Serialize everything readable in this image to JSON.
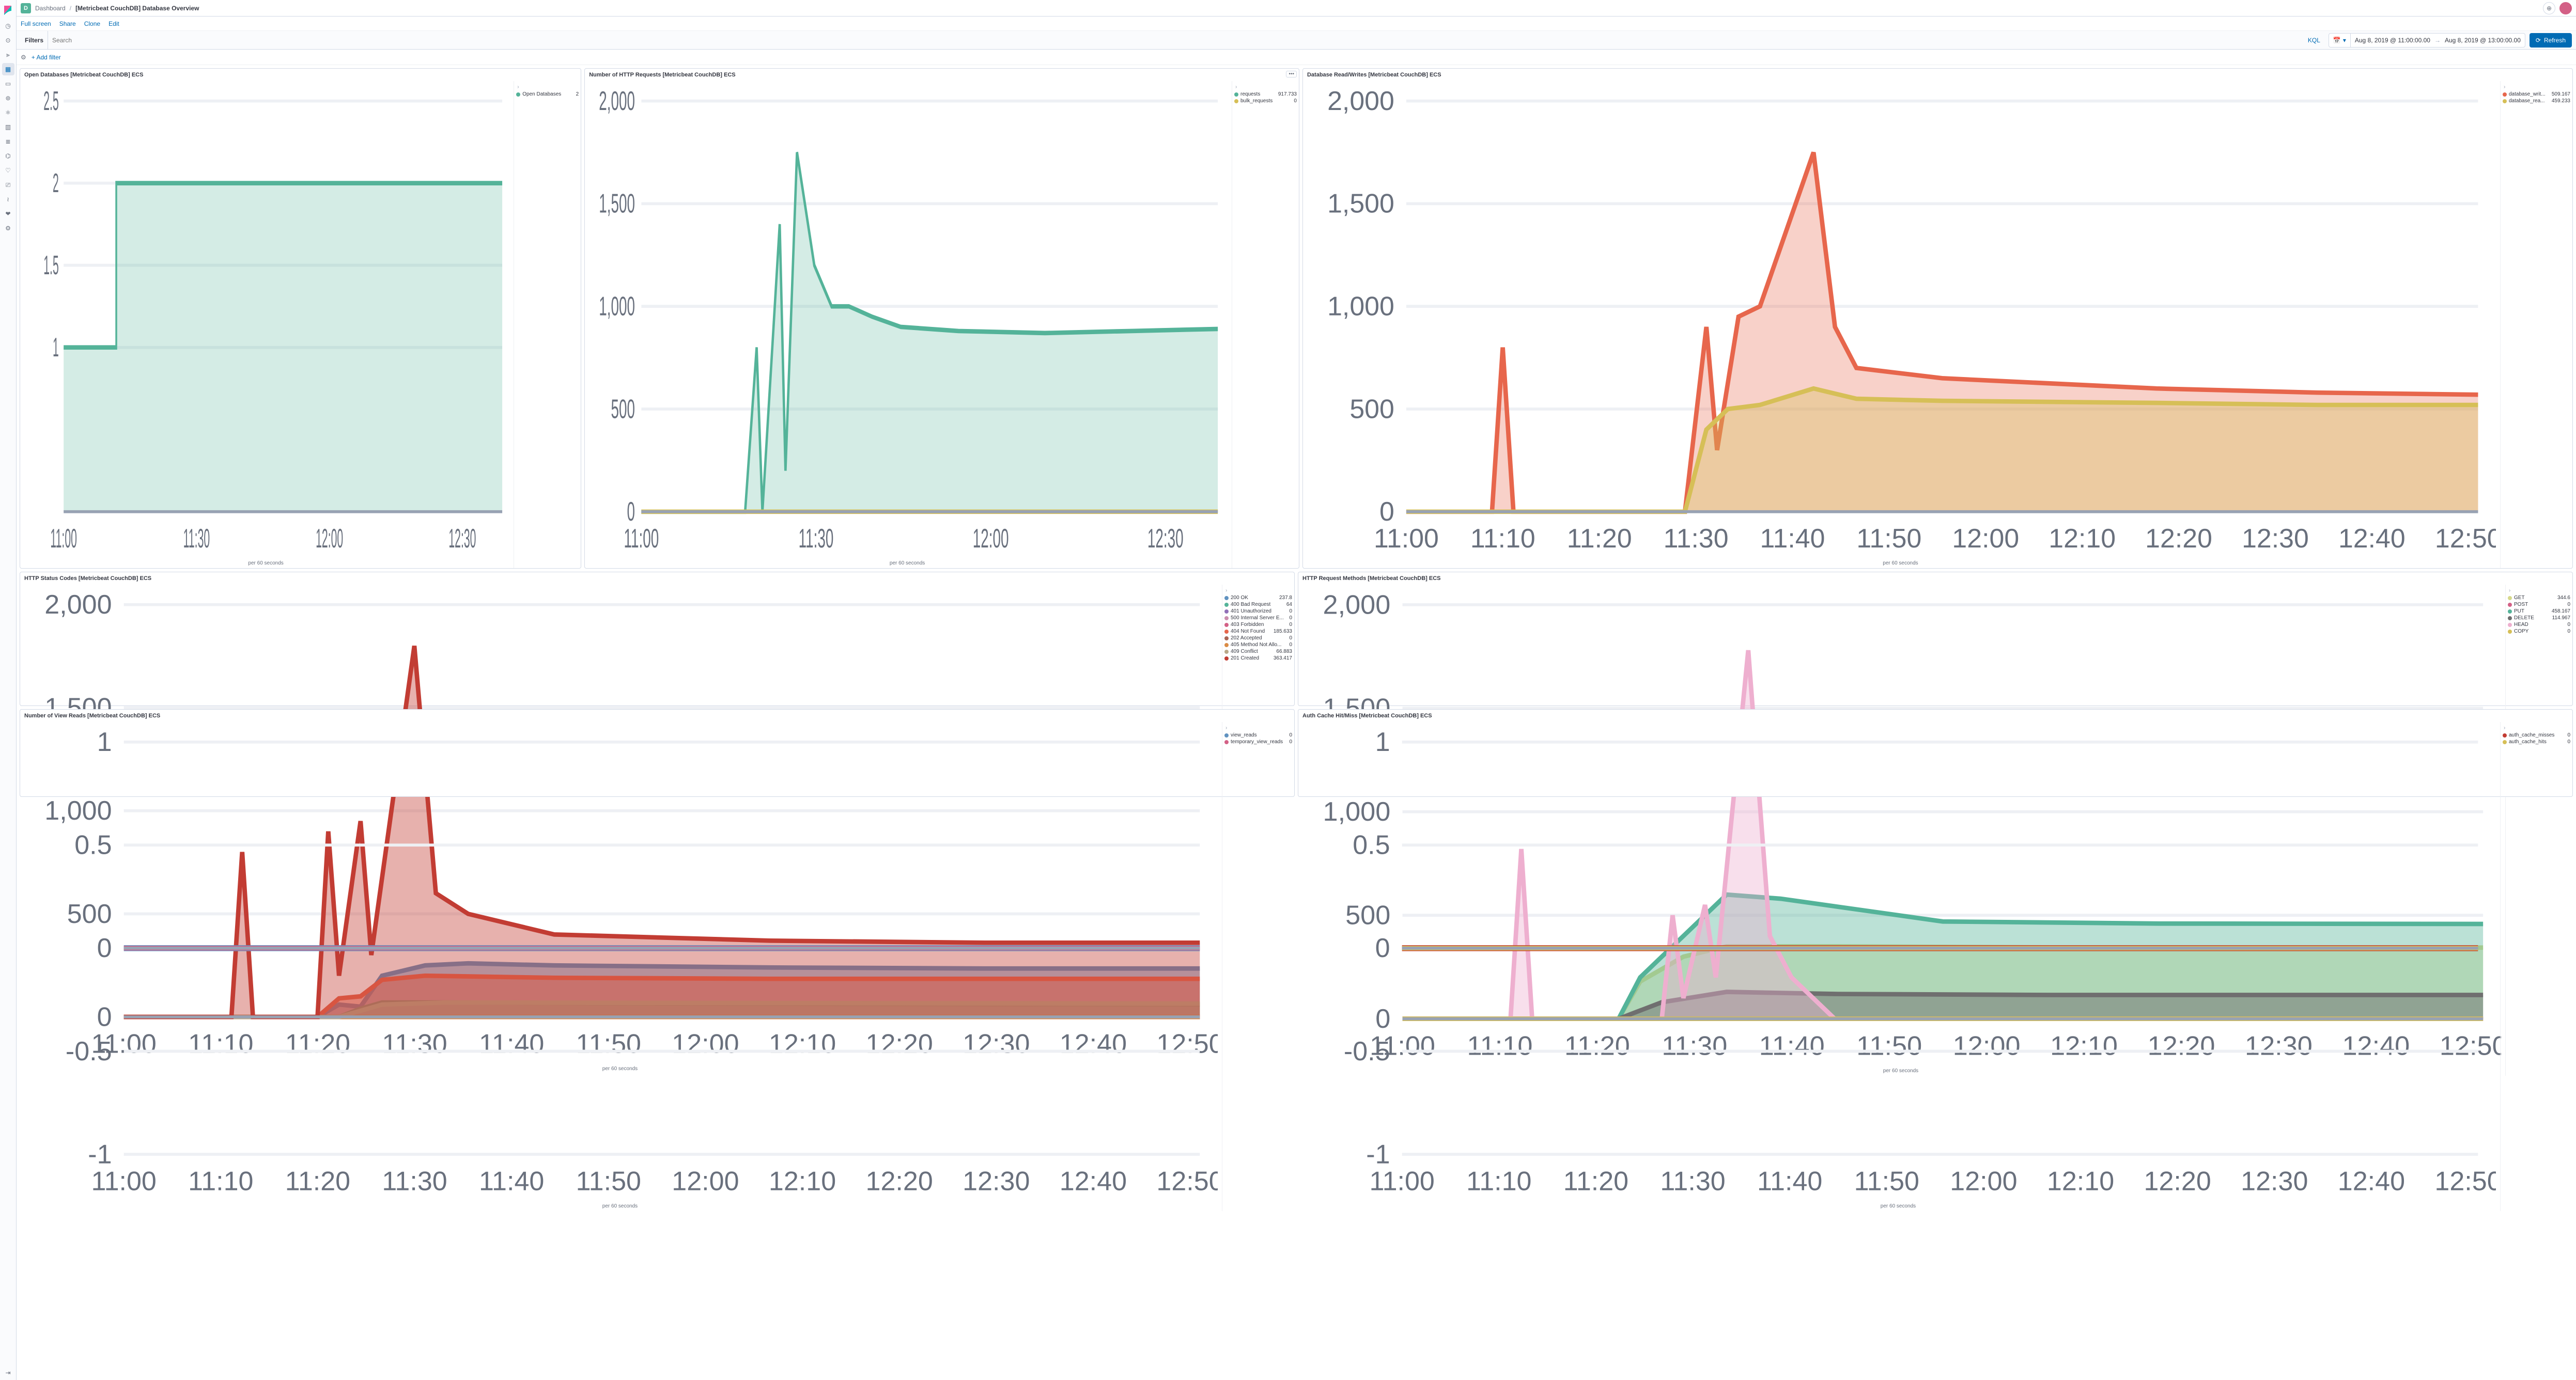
{
  "header": {
    "app_badge": "D",
    "crumb1": "Dashboard",
    "title": "[Metricbeat CouchDB] Database Overview"
  },
  "toolbar": {
    "fullscreen": "Full screen",
    "share": "Share",
    "clone": "Clone",
    "edit": "Edit"
  },
  "filterbar": {
    "filters_label": "Filters",
    "search_placeholder": "Search",
    "kql": "KQL",
    "time_from": "Aug 8, 2019 @ 11:00:00.00",
    "time_to": "Aug 8, 2019 @ 13:00:00.00",
    "refresh": "Refresh"
  },
  "addfilter": {
    "label": "+ Add filter"
  },
  "xcaption": "per 60 seconds",
  "xticks_short": [
    "11:00",
    "11:30",
    "12:00",
    "12:30"
  ],
  "xticks_long": [
    "11:00",
    "11:10",
    "11:20",
    "11:30",
    "11:40",
    "11:50",
    "12:00",
    "12:10",
    "12:20",
    "12:30",
    "12:40",
    "12:50"
  ],
  "panels": {
    "open_db": {
      "title": "Open Databases [Metricbeat CouchDB] ECS",
      "ylim": [
        0,
        2.5
      ],
      "yticks": [
        1,
        1.5,
        2,
        2.5
      ],
      "series": [
        {
          "label": "Open Databases",
          "value": "2",
          "color": "#54b399",
          "points": [
            [
              0,
              1
            ],
            [
              0.12,
              1
            ],
            [
              0.12,
              2
            ],
            [
              1,
              2
            ]
          ],
          "fill_opacity": 0.25
        }
      ]
    },
    "http_req": {
      "title": "Number of HTTP Requests [Metricbeat CouchDB] ECS",
      "ylim": [
        0,
        2000
      ],
      "yticks": [
        0,
        500,
        1000,
        1500,
        2000
      ],
      "show_menu": true,
      "series": [
        {
          "label": "requests",
          "value": "917.733",
          "color": "#54b399",
          "points": [
            [
              0,
              0
            ],
            [
              0.18,
              0
            ],
            [
              0.2,
              800
            ],
            [
              0.21,
              0
            ],
            [
              0.24,
              1400
            ],
            [
              0.25,
              200
            ],
            [
              0.27,
              1750
            ],
            [
              0.3,
              1200
            ],
            [
              0.33,
              1000
            ],
            [
              0.36,
              1000
            ],
            [
              0.4,
              950
            ],
            [
              0.45,
              900
            ],
            [
              0.55,
              880
            ],
            [
              0.7,
              870
            ],
            [
              0.85,
              880
            ],
            [
              1,
              890
            ]
          ],
          "fill_opacity": 0.25
        },
        {
          "label": "bulk_requests",
          "value": "0",
          "color": "#d6bf57",
          "points": [
            [
              0,
              0
            ],
            [
              1,
              0
            ]
          ],
          "fill_opacity": 0.25
        }
      ]
    },
    "db_rw": {
      "title": "Database Read/Writes [Metricbeat CouchDB] ECS",
      "ylim": [
        0,
        2000
      ],
      "yticks": [
        0,
        500,
        1000,
        1500,
        2000
      ],
      "series": [
        {
          "label": "database_writ...",
          "value": "509.167",
          "color": "#e7664c",
          "points": [
            [
              0,
              0
            ],
            [
              0.08,
              0
            ],
            [
              0.09,
              800
            ],
            [
              0.1,
              0
            ],
            [
              0.26,
              0
            ],
            [
              0.28,
              900
            ],
            [
              0.29,
              300
            ],
            [
              0.31,
              950
            ],
            [
              0.33,
              1000
            ],
            [
              0.38,
              1750
            ],
            [
              0.4,
              900
            ],
            [
              0.42,
              700
            ],
            [
              0.5,
              650
            ],
            [
              0.7,
              600
            ],
            [
              0.85,
              580
            ],
            [
              1,
              570
            ]
          ],
          "fill_opacity": 0.3
        },
        {
          "label": "database_rea...",
          "value": "459.233",
          "color": "#d6bf57",
          "points": [
            [
              0,
              0
            ],
            [
              0.26,
              0
            ],
            [
              0.28,
              400
            ],
            [
              0.3,
              500
            ],
            [
              0.33,
              520
            ],
            [
              0.38,
              600
            ],
            [
              0.42,
              550
            ],
            [
              0.5,
              540
            ],
            [
              0.7,
              530
            ],
            [
              0.85,
              520
            ],
            [
              1,
              520
            ]
          ],
          "fill_opacity": 0.35
        }
      ]
    },
    "status": {
      "title": "HTTP Status Codes [Metricbeat CouchDB] ECS",
      "ylim": [
        0,
        2000
      ],
      "yticks": [
        0,
        500,
        1000,
        1500,
        2000
      ],
      "stacked": true,
      "series": [
        {
          "label": "200 OK",
          "value": "237.8",
          "color": "#6092c0",
          "points": [
            [
              0,
              0
            ],
            [
              0.18,
              0
            ],
            [
              0.2,
              60
            ],
            [
              0.22,
              50
            ],
            [
              0.24,
              200
            ],
            [
              0.28,
              250
            ],
            [
              0.32,
              260
            ],
            [
              0.4,
              250
            ],
            [
              0.6,
              240
            ],
            [
              0.8,
              235
            ],
            [
              1,
              235
            ]
          ],
          "fill_opacity": 0.5
        },
        {
          "label": "400 Bad Request",
          "value": "64",
          "color": "#54b399",
          "points": [
            [
              0,
              0
            ],
            [
              0.2,
              0
            ],
            [
              0.22,
              40
            ],
            [
              0.24,
              70
            ],
            [
              0.3,
              70
            ],
            [
              0.5,
              65
            ],
            [
              1,
              60
            ]
          ],
          "fill_opacity": 0.5
        },
        {
          "label": "401 Unauthorized",
          "value": "0",
          "color": "#9170b8",
          "points": [
            [
              0,
              0
            ],
            [
              1,
              0
            ]
          ],
          "fill_opacity": 0.5
        },
        {
          "label": "500 Internal Server E...",
          "value": "0",
          "color": "#ca8eae",
          "points": [
            [
              0,
              0
            ],
            [
              1,
              0
            ]
          ],
          "fill_opacity": 0.5
        },
        {
          "label": "403 Forbidden",
          "value": "0",
          "color": "#d36086",
          "points": [
            [
              0,
              0
            ],
            [
              1,
              0
            ]
          ],
          "fill_opacity": 0.5
        },
        {
          "label": "404 Not Found",
          "value": "185.633",
          "color": "#e7664c",
          "points": [
            [
              0,
              0
            ],
            [
              0.18,
              0
            ],
            [
              0.2,
              90
            ],
            [
              0.22,
              100
            ],
            [
              0.24,
              180
            ],
            [
              0.28,
              200
            ],
            [
              0.4,
              190
            ],
            [
              0.6,
              185
            ],
            [
              1,
              185
            ]
          ],
          "fill_opacity": 0.5
        },
        {
          "label": "202 Accepted",
          "value": "0",
          "color": "#aa6556",
          "points": [
            [
              0,
              0
            ],
            [
              1,
              0
            ]
          ],
          "fill_opacity": 0.5
        },
        {
          "label": "405 Method Not Allo...",
          "value": "0",
          "color": "#da8b45",
          "points": [
            [
              0,
              0
            ],
            [
              1,
              0
            ]
          ],
          "fill_opacity": 0.5
        },
        {
          "label": "409 Conflict",
          "value": "66.883",
          "color": "#b9a888",
          "points": [
            [
              0,
              0
            ],
            [
              0.2,
              0
            ],
            [
              0.24,
              60
            ],
            [
              0.3,
              70
            ],
            [
              0.5,
              68
            ],
            [
              1,
              65
            ]
          ],
          "fill_opacity": 0.5
        },
        {
          "label": "201 Created",
          "value": "363.417",
          "color": "#c23c33",
          "points": [
            [
              0,
              0
            ],
            [
              0.1,
              0
            ],
            [
              0.11,
              800
            ],
            [
              0.12,
              0
            ],
            [
              0.18,
              0
            ],
            [
              0.19,
              900
            ],
            [
              0.2,
              200
            ],
            [
              0.22,
              950
            ],
            [
              0.23,
              300
            ],
            [
              0.27,
              1800
            ],
            [
              0.29,
              600
            ],
            [
              0.32,
              500
            ],
            [
              0.4,
              400
            ],
            [
              0.6,
              370
            ],
            [
              0.8,
              360
            ],
            [
              1,
              360
            ]
          ],
          "fill_opacity": 0.4
        }
      ]
    },
    "methods": {
      "title": "HTTP Request Methods [Metricbeat CouchDB] ECS",
      "ylim": [
        0,
        2000
      ],
      "yticks": [
        0,
        500,
        1000,
        1500,
        2000
      ],
      "stacked": true,
      "series": [
        {
          "label": "GET",
          "value": "344.6",
          "color": "#d6d98b",
          "points": [
            [
              0,
              0
            ],
            [
              0.2,
              0
            ],
            [
              0.22,
              180
            ],
            [
              0.26,
              300
            ],
            [
              0.3,
              350
            ],
            [
              0.4,
              350
            ],
            [
              0.6,
              345
            ],
            [
              0.8,
              344
            ],
            [
              1,
              344
            ]
          ],
          "fill_opacity": 0.45
        },
        {
          "label": "POST",
          "value": "0",
          "color": "#d36086",
          "points": [
            [
              0,
              0
            ],
            [
              1,
              0
            ]
          ],
          "fill_opacity": 0.45
        },
        {
          "label": "PUT",
          "value": "458.167",
          "color": "#54b399",
          "points": [
            [
              0,
              0
            ],
            [
              0.2,
              0
            ],
            [
              0.22,
              200
            ],
            [
              0.26,
              400
            ],
            [
              0.3,
              600
            ],
            [
              0.35,
              580
            ],
            [
              0.5,
              470
            ],
            [
              0.7,
              460
            ],
            [
              1,
              458
            ]
          ],
          "fill_opacity": 0.4
        },
        {
          "label": "DELETE",
          "value": "114.967",
          "color": "#6f6f6f",
          "points": [
            [
              0,
              0
            ],
            [
              0.2,
              0
            ],
            [
              0.24,
              80
            ],
            [
              0.3,
              130
            ],
            [
              0.4,
              120
            ],
            [
              0.6,
              115
            ],
            [
              1,
              115
            ]
          ],
          "fill_opacity": 0.5
        },
        {
          "label": "HEAD",
          "value": "0",
          "color": "#eeafcf",
          "points": [
            [
              0,
              0
            ],
            [
              0.1,
              0
            ],
            [
              0.11,
              820
            ],
            [
              0.12,
              0
            ],
            [
              0.24,
              0
            ],
            [
              0.25,
              500
            ],
            [
              0.26,
              100
            ],
            [
              0.28,
              550
            ],
            [
              0.29,
              200
            ],
            [
              0.32,
              1780
            ],
            [
              0.34,
              400
            ],
            [
              0.36,
              200
            ],
            [
              0.4,
              0
            ],
            [
              1,
              0
            ]
          ],
          "fill_opacity": 0.4
        },
        {
          "label": "COPY",
          "value": "0",
          "color": "#d6bf57",
          "points": [
            [
              0,
              0
            ],
            [
              1,
              0
            ]
          ],
          "fill_opacity": 0.45
        }
      ]
    },
    "views": {
      "title": "Number of View Reads [Metricbeat CouchDB] ECS",
      "ylim": [
        -1,
        1
      ],
      "yticks": [
        -1,
        -0.5,
        0,
        0.5,
        1
      ],
      "series": [
        {
          "label": "view_reads",
          "value": "0",
          "color": "#6092c0",
          "points": [
            [
              0,
              0
            ],
            [
              1,
              0
            ]
          ],
          "fill_opacity": 0,
          "stroke_width": 2
        },
        {
          "label": "temporary_view_reads",
          "value": "0",
          "color": "#d36086",
          "points": [
            [
              0,
              0
            ],
            [
              1,
              0
            ]
          ],
          "fill_opacity": 0
        }
      ]
    },
    "auth": {
      "title": "Auth Cache Hit/Miss [Metricbeat CouchDB] ECS",
      "ylim": [
        -1,
        1
      ],
      "yticks": [
        -1,
        -0.5,
        0,
        0.5,
        1
      ],
      "series": [
        {
          "label": "auth_cache_misses",
          "value": "0",
          "color": "#c23c33",
          "points": [
            [
              0,
              0
            ],
            [
              1,
              0
            ]
          ],
          "fill_opacity": 0,
          "stroke_width": 2
        },
        {
          "label": "auth_cache_hits",
          "value": "0",
          "color": "#d6bf57",
          "points": [
            [
              0,
              0
            ],
            [
              1,
              0
            ]
          ],
          "fill_opacity": 0
        }
      ]
    }
  }
}
